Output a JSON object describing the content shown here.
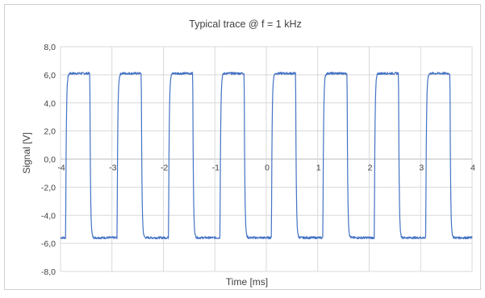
{
  "colors": {
    "series": "#4472c4",
    "grid": "#d9d9d9",
    "frame": "#d0d0d0",
    "text": "#404040"
  },
  "chart_data": {
    "type": "line",
    "title": "Typical trace @ f = 1 kHz",
    "xlabel": "Time [ms]",
    "ylabel": "Signal [V]",
    "xlim": [
      -4,
      4
    ],
    "ylim": [
      -8,
      8
    ],
    "x_ticks": [
      -4,
      -3,
      -2,
      -1,
      0,
      1,
      2,
      3,
      4
    ],
    "x_tick_labels": [
      "-4",
      "-3",
      "-2",
      "-1",
      "0",
      "1",
      "2",
      "3",
      "4"
    ],
    "y_ticks": [
      -8,
      -6,
      -4,
      -2,
      0,
      2,
      4,
      6,
      8
    ],
    "y_tick_labels": [
      "-8,0",
      "-6,0",
      "-4,0",
      "-2,0",
      "0,0",
      "2,0",
      "4,0",
      "6,0",
      "8,0"
    ],
    "grid": true,
    "legend": "none",
    "series": [
      {
        "waveform": "square",
        "frequency_khz": 1,
        "period_ms": 1,
        "high_level_v": 6.1,
        "low_level_v": -5.6,
        "rising_edges_ms": [
          -3.9,
          -2.9,
          -1.9,
          -0.9,
          0.1,
          1.1,
          2.1,
          3.1
        ],
        "falling_edges_ms": [
          -3.43,
          -2.43,
          -1.43,
          -0.43,
          0.57,
          1.57,
          2.57,
          3.57
        ],
        "edge_time_constant_ms": 0.012
      }
    ]
  }
}
